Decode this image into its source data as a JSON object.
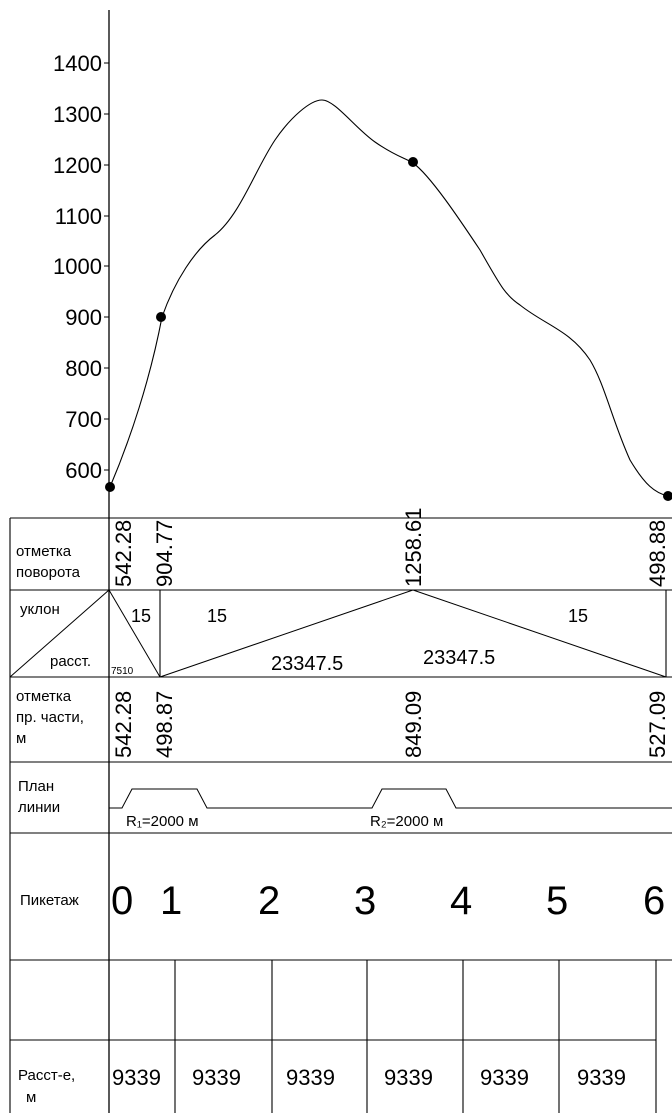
{
  "chart": {
    "y_axis": {
      "ticks": [
        "1400",
        "1300",
        "1200",
        "1100",
        "1000",
        "900",
        "800",
        "700",
        "600"
      ]
    },
    "profile_points": [
      {
        "label": "542.28"
      },
      {
        "label": "904.77"
      },
      {
        "label": "1258.61"
      },
      {
        "label": "498.88"
      }
    ]
  },
  "table": {
    "rows": {
      "turn_elevation": {
        "label_line1": "отметка",
        "label_line2": "поворота",
        "values": [
          "542.28",
          "904.77",
          "1258.61",
          "498.88"
        ]
      },
      "slope": {
        "label_top": "уклон",
        "label_bottom": "расст.",
        "small_distance": "7510",
        "slopes": [
          "15",
          "15",
          "15"
        ],
        "distances": [
          "23347.5",
          "23347.5"
        ]
      },
      "grade_elevation": {
        "label_line1": "отметка",
        "label_line2": "пр. части,",
        "label_line3": "м",
        "values": [
          "542.28",
          "498.87",
          "849.09",
          "527.09"
        ]
      },
      "plan": {
        "label_line1": "План",
        "label_line2": "линии",
        "curve1": "R₁=2000 м",
        "curve2": "R₂=2000 м"
      },
      "picket": {
        "label": "Пикетаж",
        "numbers": [
          "0",
          "1",
          "2",
          "3",
          "4",
          "5",
          "6"
        ]
      },
      "distance": {
        "label_line1": "Расст-е,",
        "label_line2": "м",
        "values": [
          "9339",
          "9339",
          "9339",
          "9339",
          "9339",
          "9339"
        ]
      }
    }
  }
}
